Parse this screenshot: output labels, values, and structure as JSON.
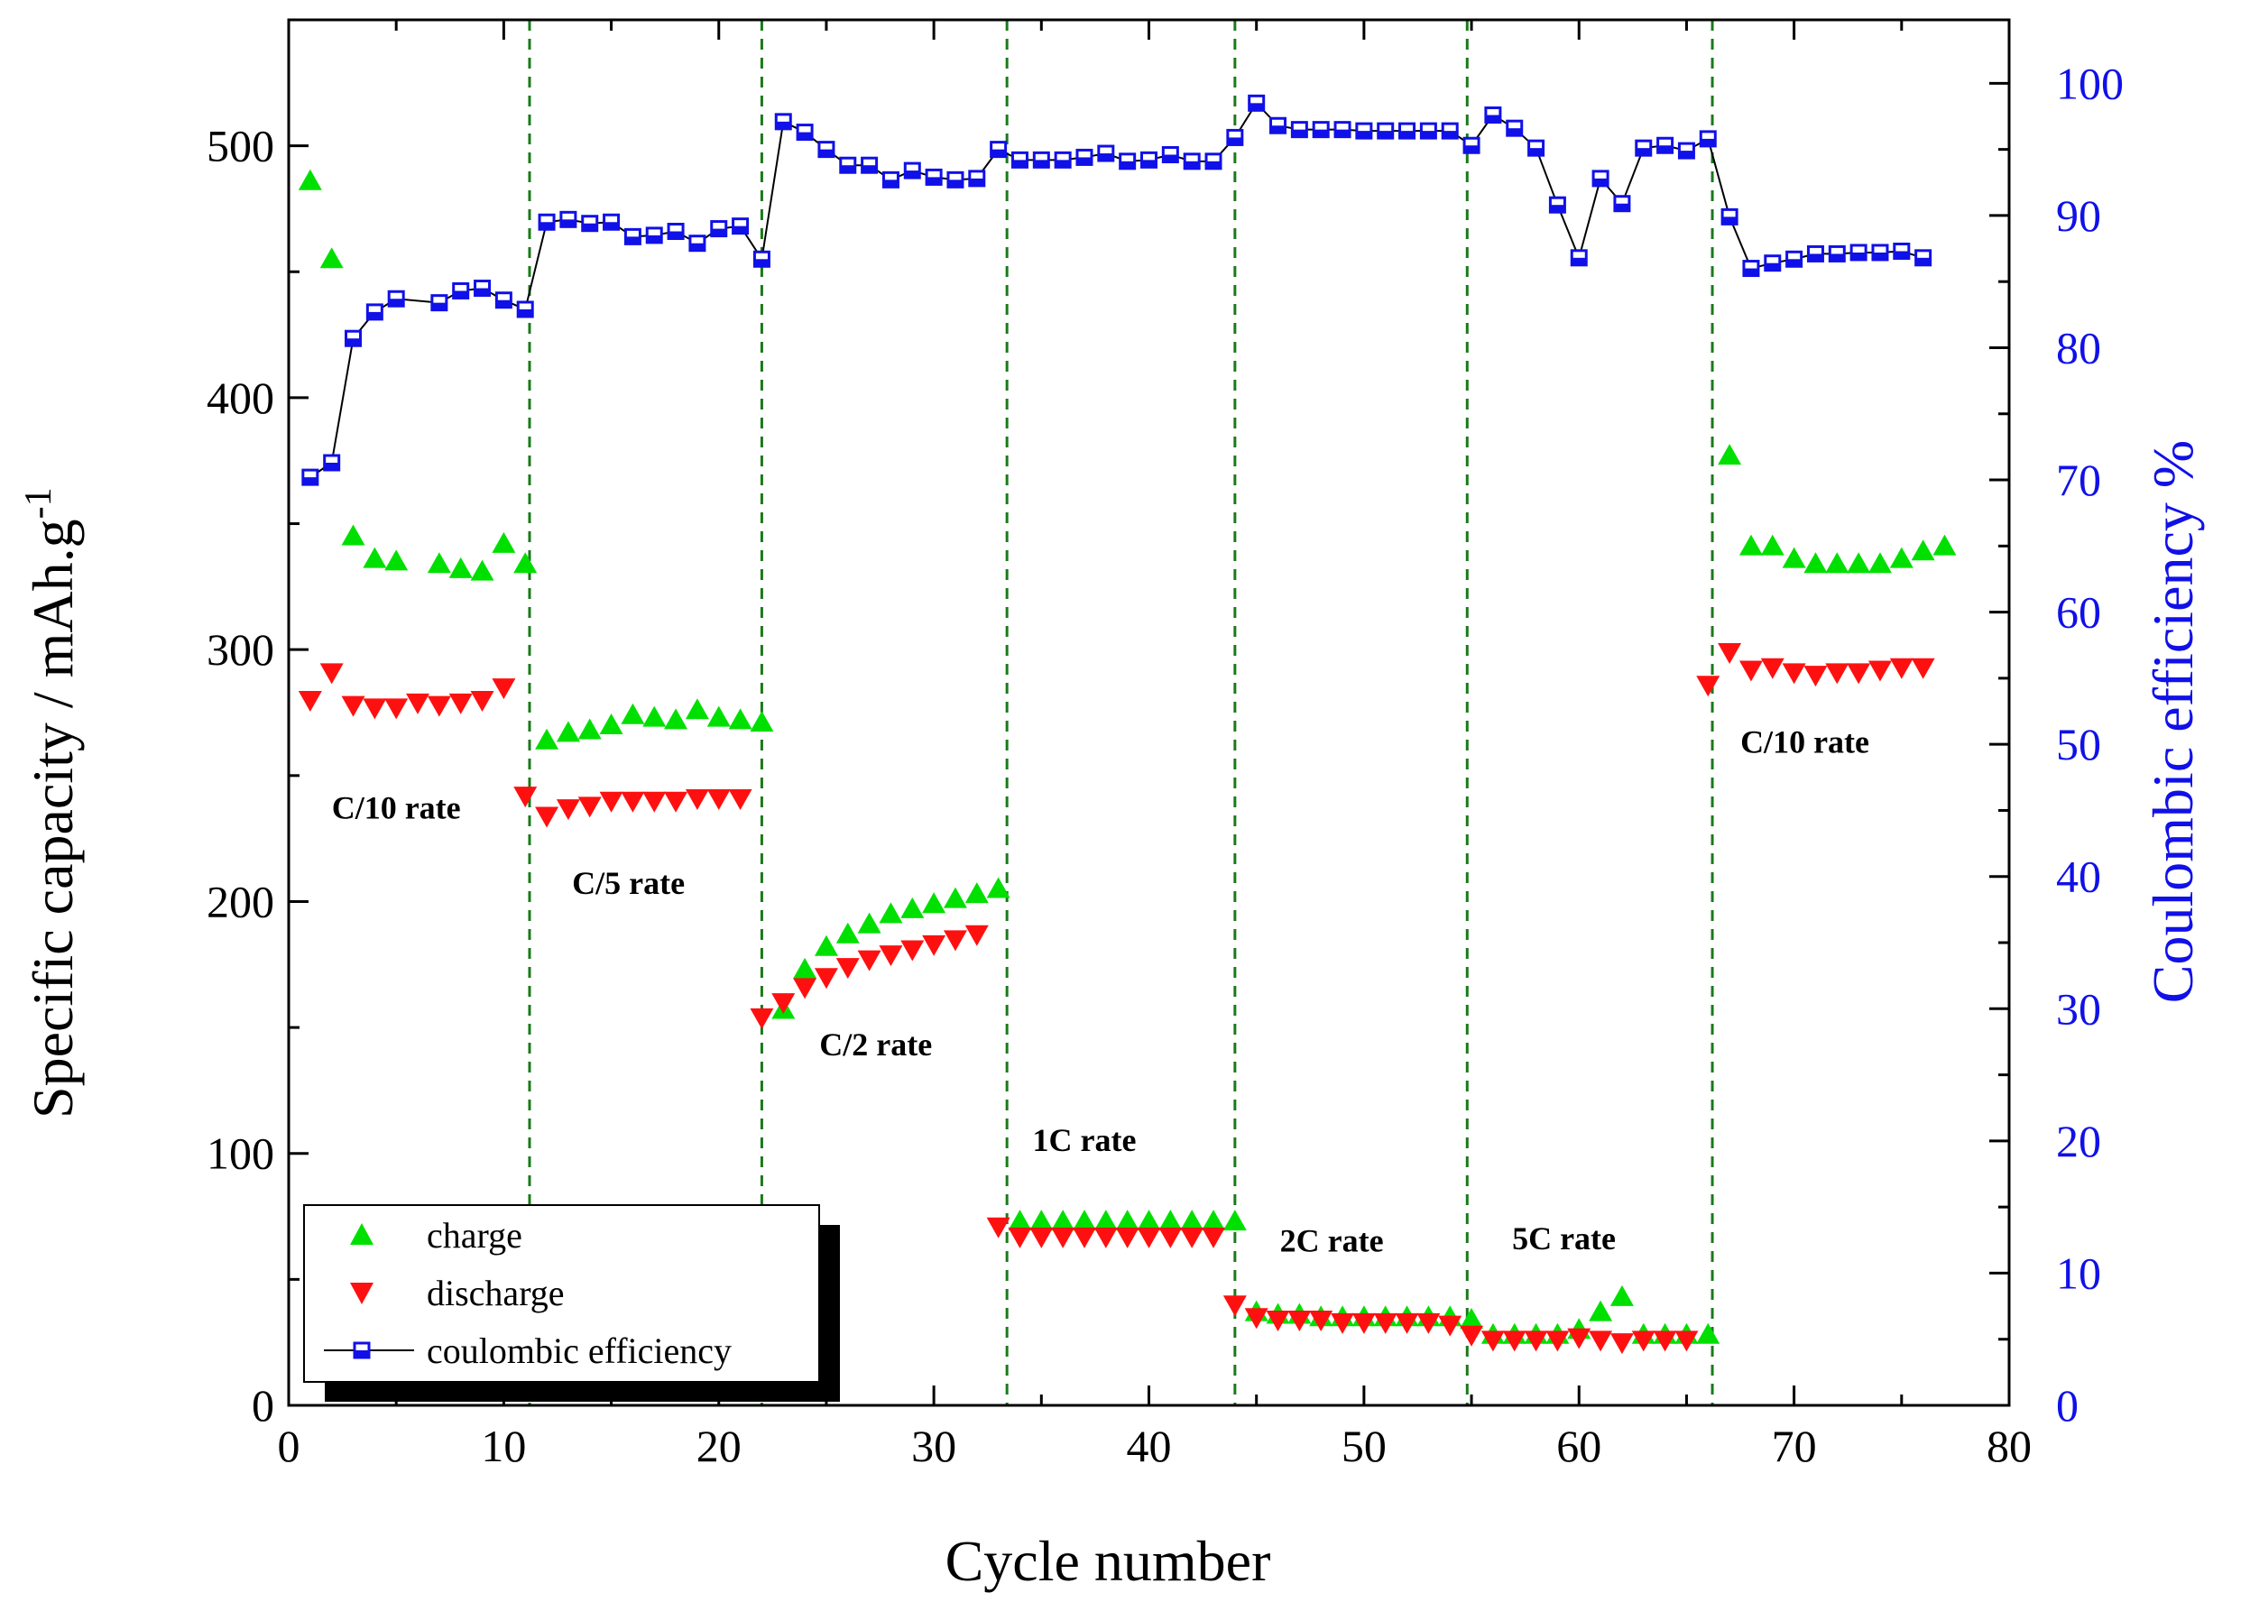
{
  "chart_data": {
    "type": "scatter",
    "x_label": "Cycle number",
    "y_label": "Specific capacity / mAh.g",
    "y_label_sup": "-1",
    "y2_label": "Coulombic efficiency %",
    "xlim": [
      0,
      80
    ],
    "ylim": [
      0,
      550
    ],
    "y2lim": [
      0,
      104.8
    ],
    "x_ticks": [
      0,
      10,
      20,
      30,
      40,
      50,
      60,
      70,
      80
    ],
    "y_ticks": [
      0,
      100,
      200,
      300,
      400,
      500
    ],
    "y2_ticks": [
      0,
      10,
      20,
      30,
      40,
      50,
      60,
      70,
      80,
      90,
      100
    ],
    "grid": false,
    "legend_position": "bottom-left",
    "colors": {
      "charge": "#00e000",
      "discharge": "#ff1010",
      "ce": "#1010e8",
      "rate_line": "#1a7a1a"
    },
    "rate_boundaries": [
      11.2,
      22,
      33.4,
      44,
      54.8,
      66.2
    ],
    "rate_labels": [
      {
        "text": "C/10 rate",
        "x": 5,
        "y": 233
      },
      {
        "text": "C/5 rate",
        "x": 15.8,
        "y": 203
      },
      {
        "text": "C/2 rate",
        "x": 27.3,
        "y": 139
      },
      {
        "text": "1C rate",
        "x": 37,
        "y": 101
      },
      {
        "text": "2C rate",
        "x": 48.5,
        "y": 61
      },
      {
        "text": "5C rate",
        "x": 59.3,
        "y": 62
      },
      {
        "text": "C/10 rate",
        "x": 70.5,
        "y": 259
      }
    ],
    "series": [
      {
        "name": "charge",
        "marker": "triangle-up",
        "axis": "left",
        "x": [
          1,
          2,
          3,
          4,
          5,
          7,
          8,
          9,
          10,
          11,
          12,
          13,
          14,
          15,
          16,
          17,
          18,
          19,
          20,
          21,
          22,
          23,
          24,
          25,
          26,
          27,
          28,
          29,
          30,
          31,
          32,
          33,
          34,
          35,
          36,
          37,
          38,
          39,
          40,
          41,
          42,
          43,
          44,
          45,
          46,
          47,
          48,
          49,
          50,
          51,
          52,
          53,
          54,
          55,
          56,
          57,
          58,
          59,
          60,
          61,
          62,
          63,
          64,
          65,
          66,
          67,
          68,
          69,
          70,
          71,
          72,
          73,
          74,
          75,
          76,
          77
        ],
        "y": [
          486,
          455,
          345,
          336,
          335,
          334,
          332,
          331,
          342,
          334,
          264,
          267,
          268,
          270,
          274,
          273,
          272,
          276,
          273,
          272,
          271,
          157,
          173,
          182,
          187,
          191,
          195,
          197,
          199,
          201,
          203,
          205,
          73,
          73,
          73,
          73,
          73,
          73,
          73,
          73,
          73,
          73,
          73,
          37,
          36,
          36,
          35,
          35,
          35,
          35,
          35,
          35,
          35,
          34,
          28,
          28,
          28,
          28,
          30,
          37,
          43,
          28,
          28,
          28,
          28,
          377,
          341,
          341,
          336,
          334,
          334,
          334,
          334,
          336,
          339,
          341
        ]
      },
      {
        "name": "discharge",
        "marker": "triangle-down",
        "axis": "left",
        "x": [
          1,
          2,
          3,
          4,
          5,
          6,
          7,
          8,
          9,
          10,
          11,
          12,
          13,
          14,
          15,
          16,
          17,
          18,
          19,
          20,
          21,
          22,
          23,
          24,
          25,
          26,
          27,
          28,
          29,
          30,
          31,
          32,
          33,
          34,
          35,
          36,
          37,
          38,
          39,
          40,
          41,
          42,
          43,
          44,
          45,
          46,
          47,
          48,
          49,
          50,
          51,
          52,
          53,
          54,
          55,
          56,
          57,
          58,
          59,
          60,
          61,
          62,
          63,
          64,
          65,
          66,
          67,
          68,
          69,
          70,
          71,
          72,
          73,
          74,
          75,
          76
        ],
        "y": [
          280,
          291,
          278,
          277,
          277,
          279,
          278,
          279,
          280,
          285,
          242,
          234,
          237,
          238,
          240,
          240,
          240,
          240,
          241,
          241,
          241,
          154,
          160,
          166,
          170,
          174,
          177,
          179,
          181,
          183,
          185,
          187,
          71,
          67,
          67,
          67,
          67,
          67,
          67,
          67,
          67,
          67,
          67,
          40,
          35,
          34,
          34,
          34,
          33,
          33,
          33,
          33,
          33,
          32,
          28,
          26,
          26,
          26,
          26,
          27,
          26,
          25,
          26,
          26,
          26,
          286,
          299,
          292,
          293,
          291,
          290,
          291,
          291,
          292,
          293,
          293
        ]
      },
      {
        "name": "coulombic efficiency",
        "marker": "square-line",
        "axis": "right",
        "x": [
          1,
          2,
          3,
          4,
          5,
          7,
          8,
          9,
          10,
          11,
          12,
          13,
          14,
          15,
          16,
          17,
          18,
          19,
          20,
          21,
          22,
          23,
          24,
          25,
          26,
          27,
          28,
          29,
          30,
          31,
          32,
          33,
          34,
          35,
          36,
          37,
          38,
          39,
          40,
          41,
          42,
          43,
          44,
          45,
          46,
          47,
          48,
          49,
          50,
          51,
          52,
          53,
          54,
          55,
          56,
          57,
          58,
          59,
          60,
          61,
          62,
          63,
          64,
          65,
          66,
          67,
          68,
          69,
          70,
          71,
          72,
          73,
          74,
          75,
          76
        ],
        "y": [
          70.2,
          71.3,
          80.7,
          82.7,
          83.7,
          83.4,
          84.3,
          84.5,
          83.6,
          82.9,
          89.5,
          89.7,
          89.4,
          89.5,
          88.4,
          88.5,
          88.8,
          87.9,
          89.0,
          89.2,
          86.7,
          97.1,
          96.3,
          95.0,
          93.8,
          93.8,
          92.7,
          93.4,
          92.9,
          92.7,
          92.8,
          95.0,
          94.2,
          94.2,
          94.2,
          94.4,
          94.7,
          94.1,
          94.2,
          94.6,
          94.1,
          94.1,
          95.9,
          98.5,
          96.8,
          96.5,
          96.5,
          96.5,
          96.4,
          96.4,
          96.4,
          96.4,
          96.4,
          95.3,
          97.6,
          96.6,
          95.1,
          90.8,
          86.8,
          92.8,
          90.9,
          95.1,
          95.3,
          94.9,
          95.8,
          89.9,
          86.0,
          86.4,
          86.7,
          87.1,
          87.1,
          87.2,
          87.2,
          87.3,
          86.8
        ]
      }
    ]
  },
  "legend": {
    "items": [
      {
        "key": "charge",
        "label": "charge"
      },
      {
        "key": "discharge",
        "label": "discharge"
      },
      {
        "key": "ce",
        "label": "coulombic efficiency"
      }
    ]
  }
}
